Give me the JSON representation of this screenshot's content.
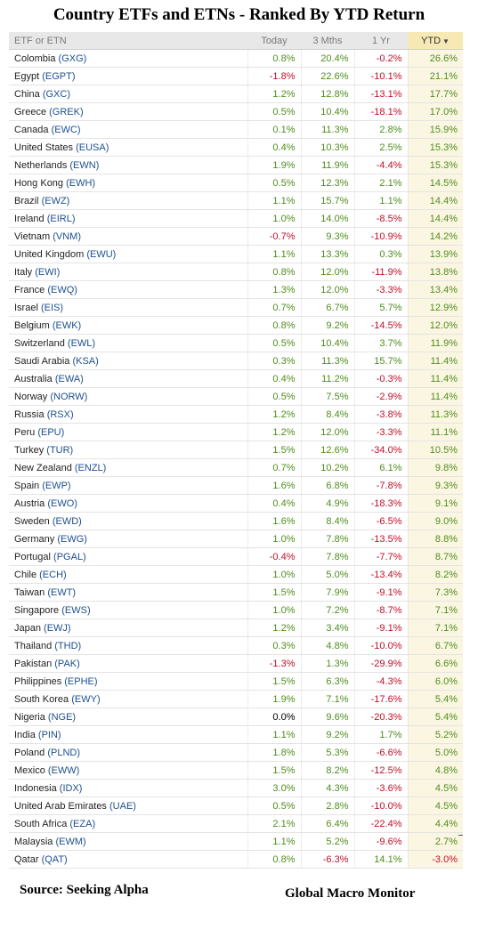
{
  "title": "Country ETFs and ETNs - Ranked By YTD Return",
  "columns": {
    "name": "ETF or ETN",
    "today": "Today",
    "three_mths": "3 Mths",
    "one_yr": "1 Yr",
    "ytd": "YTD"
  },
  "sort_icon": "triangle-down-icon",
  "colors": {
    "positive": "#4f8d1e",
    "negative": "#c0102a",
    "ticker": "#1d4f8f",
    "ytd_header": "#f6e9b4"
  },
  "rows": [
    {
      "country": "Colombia",
      "ticker": "(GXG)",
      "today": "0.8%",
      "three_mths": "20.4%",
      "one_yr": "-0.2%",
      "ytd": "26.6%"
    },
    {
      "country": "Egypt",
      "ticker": "(EGPT)",
      "today": "-1.8%",
      "three_mths": "22.6%",
      "one_yr": "-10.1%",
      "ytd": "21.1%"
    },
    {
      "country": "China",
      "ticker": "(GXC)",
      "today": "1.2%",
      "three_mths": "12.8%",
      "one_yr": "-13.1%",
      "ytd": "17.7%"
    },
    {
      "country": "Greece",
      "ticker": "(GREK)",
      "today": "0.5%",
      "three_mths": "10.4%",
      "one_yr": "-18.1%",
      "ytd": "17.0%"
    },
    {
      "country": "Canada",
      "ticker": "(EWC)",
      "today": "0.1%",
      "three_mths": "11.3%",
      "one_yr": "2.8%",
      "ytd": "15.9%"
    },
    {
      "country": "United States",
      "ticker": "(EUSA)",
      "today": "0.4%",
      "three_mths": "10.3%",
      "one_yr": "2.5%",
      "ytd": "15.3%"
    },
    {
      "country": "Netherlands",
      "ticker": "(EWN)",
      "today": "1.9%",
      "three_mths": "11.9%",
      "one_yr": "-4.4%",
      "ytd": "15.3%"
    },
    {
      "country": "Hong Kong",
      "ticker": "(EWH)",
      "today": "0.5%",
      "three_mths": "12.3%",
      "one_yr": "2.1%",
      "ytd": "14.5%"
    },
    {
      "country": "Brazil",
      "ticker": "(EWZ)",
      "today": "1.1%",
      "three_mths": "15.7%",
      "one_yr": "1.1%",
      "ytd": "14.4%"
    },
    {
      "country": "Ireland",
      "ticker": "(EIRL)",
      "today": "1.0%",
      "three_mths": "14.0%",
      "one_yr": "-8.5%",
      "ytd": "14.4%"
    },
    {
      "country": "Vietnam",
      "ticker": "(VNM)",
      "today": "-0.7%",
      "three_mths": "9.3%",
      "one_yr": "-10.9%",
      "ytd": "14.2%"
    },
    {
      "country": "United Kingdom",
      "ticker": "(EWU)",
      "today": "1.1%",
      "three_mths": "13.3%",
      "one_yr": "0.3%",
      "ytd": "13.9%"
    },
    {
      "country": "Italy",
      "ticker": "(EWI)",
      "today": "0.8%",
      "three_mths": "12.0%",
      "one_yr": "-11.9%",
      "ytd": "13.8%"
    },
    {
      "country": "France",
      "ticker": "(EWQ)",
      "today": "1.3%",
      "three_mths": "12.0%",
      "one_yr": "-3.3%",
      "ytd": "13.4%"
    },
    {
      "country": "Israel",
      "ticker": "(EIS)",
      "today": "0.7%",
      "three_mths": "6.7%",
      "one_yr": "5.7%",
      "ytd": "12.9%"
    },
    {
      "country": "Belgium",
      "ticker": "(EWK)",
      "today": "0.8%",
      "three_mths": "9.2%",
      "one_yr": "-14.5%",
      "ytd": "12.0%"
    },
    {
      "country": "Switzerland",
      "ticker": "(EWL)",
      "today": "0.5%",
      "three_mths": "10.4%",
      "one_yr": "3.7%",
      "ytd": "11.9%"
    },
    {
      "country": "Saudi Arabia",
      "ticker": "(KSA)",
      "today": "0.3%",
      "three_mths": "11.3%",
      "one_yr": "15.7%",
      "ytd": "11.4%"
    },
    {
      "country": "Australia",
      "ticker": "(EWA)",
      "today": "0.4%",
      "three_mths": "11.2%",
      "one_yr": "-0.3%",
      "ytd": "11.4%"
    },
    {
      "country": "Norway",
      "ticker": "(NORW)",
      "today": "0.5%",
      "three_mths": "7.5%",
      "one_yr": "-2.9%",
      "ytd": "11.4%"
    },
    {
      "country": "Russia",
      "ticker": "(RSX)",
      "today": "1.2%",
      "three_mths": "8.4%",
      "one_yr": "-3.8%",
      "ytd": "11.3%"
    },
    {
      "country": "Peru",
      "ticker": "(EPU)",
      "today": "1.2%",
      "three_mths": "12.0%",
      "one_yr": "-3.3%",
      "ytd": "11.1%"
    },
    {
      "country": "Turkey",
      "ticker": "(TUR)",
      "today": "1.5%",
      "three_mths": "12.6%",
      "one_yr": "-34.0%",
      "ytd": "10.5%"
    },
    {
      "country": "New Zealand",
      "ticker": "(ENZL)",
      "today": "0.7%",
      "three_mths": "10.2%",
      "one_yr": "6.1%",
      "ytd": "9.8%"
    },
    {
      "country": "Spain",
      "ticker": "(EWP)",
      "today": "1.6%",
      "three_mths": "6.8%",
      "one_yr": "-7.8%",
      "ytd": "9.3%"
    },
    {
      "country": "Austria",
      "ticker": "(EWO)",
      "today": "0.4%",
      "three_mths": "4.9%",
      "one_yr": "-18.3%",
      "ytd": "9.1%"
    },
    {
      "country": "Sweden",
      "ticker": "(EWD)",
      "today": "1.6%",
      "three_mths": "8.4%",
      "one_yr": "-6.5%",
      "ytd": "9.0%"
    },
    {
      "country": "Germany",
      "ticker": "(EWG)",
      "today": "1.0%",
      "three_mths": "7.8%",
      "one_yr": "-13.5%",
      "ytd": "8.8%"
    },
    {
      "country": "Portugal",
      "ticker": "(PGAL)",
      "today": "-0.4%",
      "three_mths": "7.8%",
      "one_yr": "-7.7%",
      "ytd": "8.7%"
    },
    {
      "country": "Chile",
      "ticker": "(ECH)",
      "today": "1.0%",
      "three_mths": "5.0%",
      "one_yr": "-13.4%",
      "ytd": "8.2%"
    },
    {
      "country": "Taiwan",
      "ticker": "(EWT)",
      "today": "1.5%",
      "three_mths": "7.9%",
      "one_yr": "-9.1%",
      "ytd": "7.3%"
    },
    {
      "country": "Singapore",
      "ticker": "(EWS)",
      "today": "1.0%",
      "three_mths": "7.2%",
      "one_yr": "-8.7%",
      "ytd": "7.1%"
    },
    {
      "country": "Japan",
      "ticker": "(EWJ)",
      "today": "1.2%",
      "three_mths": "3.4%",
      "one_yr": "-9.1%",
      "ytd": "7.1%"
    },
    {
      "country": "Thailand",
      "ticker": "(THD)",
      "today": "0.3%",
      "three_mths": "4.8%",
      "one_yr": "-10.0%",
      "ytd": "6.7%"
    },
    {
      "country": "Pakistan",
      "ticker": "(PAK)",
      "today": "-1.3%",
      "three_mths": "1.3%",
      "one_yr": "-29.9%",
      "ytd": "6.6%"
    },
    {
      "country": "Philippines",
      "ticker": "(EPHE)",
      "today": "1.5%",
      "three_mths": "6.3%",
      "one_yr": "-4.3%",
      "ytd": "6.0%"
    },
    {
      "country": "South Korea",
      "ticker": "(EWY)",
      "today": "1.9%",
      "three_mths": "7.1%",
      "one_yr": "-17.6%",
      "ytd": "5.4%"
    },
    {
      "country": "Nigeria",
      "ticker": "(NGE)",
      "today": "0.0%",
      "three_mths": "9.6%",
      "one_yr": "-20.3%",
      "ytd": "5.4%"
    },
    {
      "country": "India",
      "ticker": "(PIN)",
      "today": "1.1%",
      "three_mths": "9.2%",
      "one_yr": "1.7%",
      "ytd": "5.2%"
    },
    {
      "country": "Poland",
      "ticker": "(PLND)",
      "today": "1.8%",
      "three_mths": "5.3%",
      "one_yr": "-6.6%",
      "ytd": "5.0%"
    },
    {
      "country": "Mexico",
      "ticker": "(EWW)",
      "today": "1.5%",
      "three_mths": "8.2%",
      "one_yr": "-12.5%",
      "ytd": "4.8%"
    },
    {
      "country": "Indonesia",
      "ticker": "(IDX)",
      "today": "3.0%",
      "three_mths": "4.3%",
      "one_yr": "-3.6%",
      "ytd": "4.5%"
    },
    {
      "country": "United Arab Emirates",
      "ticker": "(UAE)",
      "today": "0.5%",
      "three_mths": "2.8%",
      "one_yr": "-10.0%",
      "ytd": "4.5%"
    },
    {
      "country": "South Africa",
      "ticker": "(EZA)",
      "today": "2.1%",
      "three_mths": "6.4%",
      "one_yr": "-22.4%",
      "ytd": "4.4%"
    },
    {
      "country": "Malaysia",
      "ticker": "(EWM)",
      "today": "1.1%",
      "three_mths": "5.2%",
      "one_yr": "-9.6%",
      "ytd": "2.7%"
    },
    {
      "country": "Qatar",
      "ticker": "(QAT)",
      "today": "0.8%",
      "three_mths": "-6.3%",
      "one_yr": "14.1%",
      "ytd": "-3.0%"
    }
  ],
  "footer": {
    "source": "Source:  Seeking Alpha",
    "credit": "Global Macro Monitor"
  }
}
